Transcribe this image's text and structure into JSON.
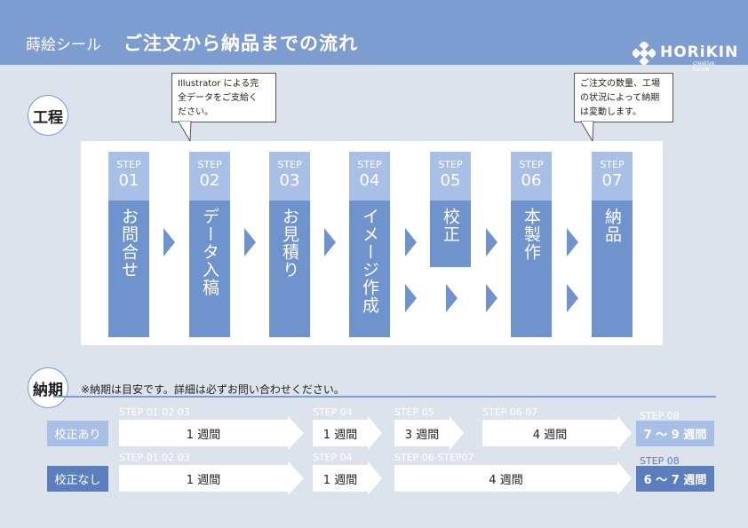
{
  "header": {
    "subtitle": "蒔絵シール",
    "title": "ご注文から納品までの流れ",
    "logo": {
      "name": "HORiKIN",
      "tagline": "creative future"
    }
  },
  "process": {
    "label": "工程",
    "bubble_left": [
      "Illustrator による完",
      "全データをご支給く",
      "ださい。"
    ],
    "bubble_right": [
      "ご注文の数量、工場",
      "の状況によって納期",
      "は変動します。"
    ],
    "steps": [
      {
        "label": "STEP",
        "num": "01",
        "text": "お問合せ"
      },
      {
        "label": "STEP",
        "num": "02",
        "text": "データ入稿"
      },
      {
        "label": "STEP",
        "num": "03",
        "text": "お見積り"
      },
      {
        "label": "STEP",
        "num": "04",
        "text": "イメージ作成"
      },
      {
        "label": "STEP",
        "num": "05",
        "text": "校正"
      },
      {
        "label": "STEP",
        "num": "06",
        "text": "本製作"
      },
      {
        "label": "STEP",
        "num": "07",
        "text": "納品"
      }
    ]
  },
  "delivery": {
    "label": "納期",
    "note": "※納期は目安です。詳細は必ずお問い合わせください。",
    "rows": [
      {
        "label": "校正あり",
        "segments": [
          {
            "step": "STEP 01  02  03",
            "duration": "1 週間"
          },
          {
            "step": "STEP 04",
            "duration": "1 週間"
          },
          {
            "step": "STEP 05",
            "duration": "3 週間"
          },
          {
            "step": "STEP 06  07",
            "duration": "4 週間"
          }
        ],
        "total_step": "STEP 08",
        "total": "7 〜 9 週間"
      },
      {
        "label": "校正なし",
        "segments": [
          {
            "step": "STEP 01  02  03",
            "duration": "1 週間"
          },
          {
            "step": "STEP 04",
            "duration": "1 週間"
          },
          {
            "step": "STEP 06    STEP07",
            "duration": "4 週間"
          }
        ],
        "total_step": "STEP 08",
        "total": "6 〜 7 週間"
      }
    ]
  },
  "colors": {
    "header": "#7d9dd0",
    "step_body": "#6f93cc",
    "step_head": "#a9c0e6",
    "background": "#dde3ec",
    "total_light": "#a9c0e6",
    "total_dark": "#5b7fbe"
  }
}
